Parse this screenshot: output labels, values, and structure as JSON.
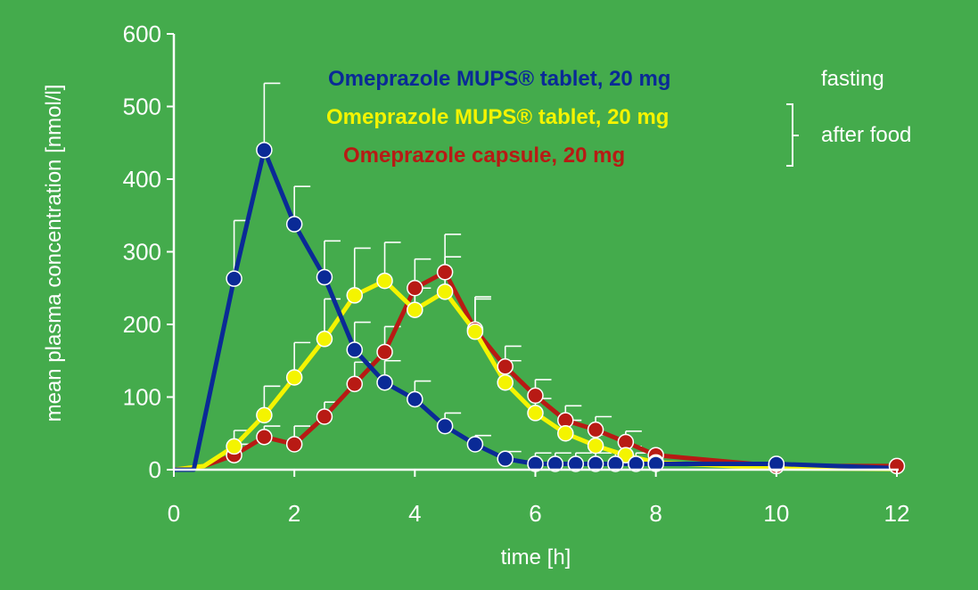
{
  "colors": {
    "background": "#44ab4c",
    "axis": "#ffffff",
    "errorbar": "#ffffff",
    "blue": "#0a2a96",
    "yellow": "#f4f400",
    "red": "#b81a14"
  },
  "chart_data": {
    "type": "line",
    "title": "",
    "xlabel": "time [h]",
    "ylabel": "mean plasma concentration [nmol/l]",
    "xlim": [
      0,
      12
    ],
    "ylim": [
      0,
      600
    ],
    "xticks": [
      0,
      2,
      4,
      6,
      8,
      10,
      12
    ],
    "yticks": [
      0,
      100,
      200,
      300,
      400,
      500,
      600
    ],
    "grid": false,
    "legend_position": "top-right",
    "conditions": {
      "fasting": "fasting",
      "after_food": "after food"
    },
    "series": [
      {
        "name": "Omeprazole MUPS® tablet, 20 mg",
        "condition": "fasting",
        "color": "#0a2a96",
        "x": [
          0,
          0.33,
          1,
          1.5,
          2,
          2.5,
          3,
          3.5,
          4,
          4.5,
          5,
          5.5,
          6,
          6.33,
          6.67,
          7,
          7.33,
          7.67,
          8,
          10,
          12
        ],
        "y": [
          0,
          0,
          263,
          440,
          338,
          265,
          165,
          120,
          97,
          60,
          35,
          15,
          8,
          8,
          8,
          8,
          8,
          8,
          8,
          8,
          2
        ],
        "error": [
          0,
          0,
          80,
          92,
          52,
          50,
          38,
          30,
          25,
          18,
          12,
          10,
          15,
          15,
          15,
          15,
          15,
          15,
          0,
          0,
          0
        ]
      },
      {
        "name": "Omeprazole MUPS® tablet, 20 mg",
        "condition": "after food",
        "color": "#f4f400",
        "x": [
          0,
          0.5,
          1,
          1.5,
          2,
          2.5,
          3,
          3.5,
          4,
          4.5,
          5,
          5.5,
          6,
          6.5,
          7,
          7.5,
          8,
          10,
          12
        ],
        "y": [
          0,
          5,
          32,
          75,
          127,
          180,
          240,
          260,
          220,
          245,
          190,
          120,
          78,
          50,
          33,
          20,
          10,
          2,
          1
        ],
        "error": [
          0,
          0,
          22,
          40,
          48,
          55,
          65,
          53,
          30,
          48,
          45,
          30,
          20,
          18,
          15,
          12,
          0,
          0,
          0
        ]
      },
      {
        "name": "Omeprazole capsule, 20 mg",
        "condition": "after food",
        "color": "#b81a14",
        "x": [
          0,
          0.5,
          1,
          1.5,
          2,
          2.5,
          3,
          3.5,
          4,
          4.5,
          5,
          5.5,
          6,
          6.5,
          7,
          7.5,
          8,
          10,
          12
        ],
        "y": [
          0,
          5,
          20,
          45,
          35,
          73,
          118,
          162,
          250,
          272,
          193,
          142,
          102,
          68,
          55,
          38,
          20,
          5,
          5
        ],
        "error": [
          0,
          0,
          15,
          15,
          25,
          20,
          30,
          35,
          40,
          52,
          45,
          28,
          22,
          20,
          18,
          15,
          0,
          0,
          0
        ]
      }
    ]
  }
}
